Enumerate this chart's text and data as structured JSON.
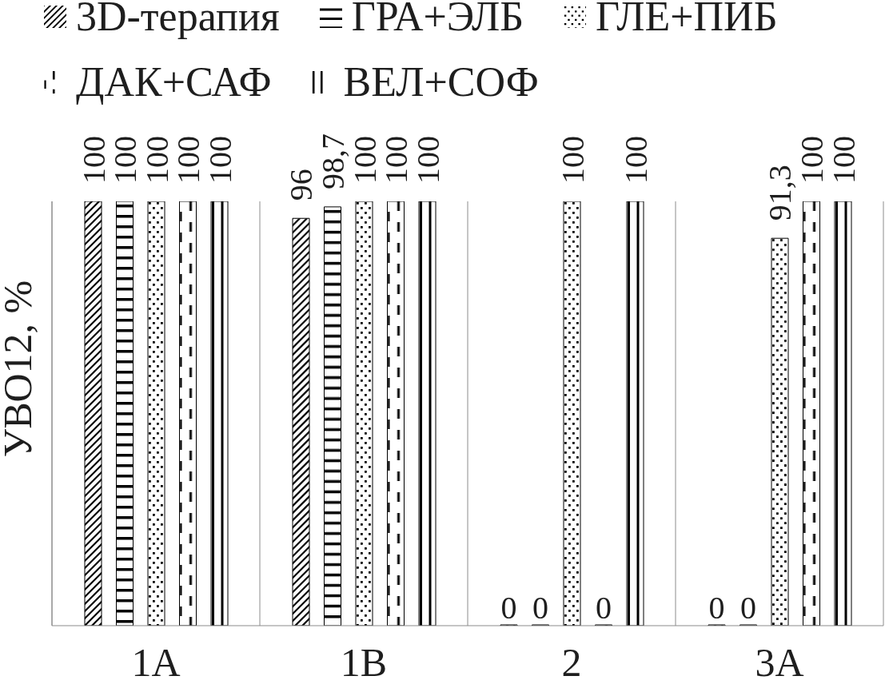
{
  "chart_data": {
    "type": "bar",
    "ylabel": "УВО12, %",
    "categories": [
      "1A",
      "1B",
      "2",
      "3A"
    ],
    "series": [
      {
        "name": "3D-терапия",
        "color": "#000000",
        "values": [
          100,
          96,
          0,
          0
        ],
        "value_labels": [
          "100",
          "96",
          "0",
          "0"
        ]
      },
      {
        "name": "ГРА+ЭЛБ",
        "color": "#000000",
        "values": [
          100,
          98.7,
          0,
          0
        ],
        "value_labels": [
          "100",
          "98,7",
          "0",
          "0"
        ]
      },
      {
        "name": "ГЛЕ+ПИБ",
        "color": "#000000",
        "values": [
          100,
          100,
          100,
          91.3
        ],
        "value_labels": [
          "100",
          "100",
          "100",
          "91,3"
        ]
      },
      {
        "name": "ДАК+САФ",
        "color": "#000000",
        "values": [
          100,
          100,
          0,
          100
        ],
        "value_labels": [
          "100",
          "100",
          "0",
          "100"
        ]
      },
      {
        "name": "ВЕЛ+СОФ",
        "color": "#000000",
        "values": [
          100,
          100,
          100,
          100
        ],
        "value_labels": [
          "100",
          "100",
          "100",
          "100"
        ]
      }
    ],
    "ylim": [
      0,
      100
    ],
    "tick_labels": "x",
    "grid": "x",
    "legend": "top"
  }
}
